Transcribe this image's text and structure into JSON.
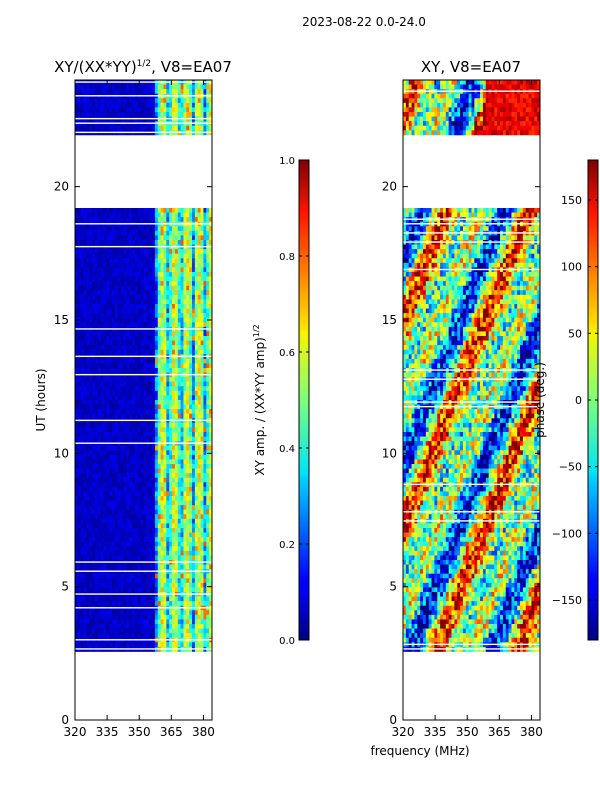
{
  "suptitle": "2023-08-22 0.0-24.0",
  "chart_data": [
    {
      "type": "heatmap",
      "title": "XY/(XX*YY)^{1/2}, V8=EA07",
      "title_main": "XY/(XX*YY)",
      "title_sup": "1/2",
      "title_suffix": ", V8=EA07",
      "xlabel": "",
      "ylabel": "UT (hours)",
      "xlim": [
        320,
        384
      ],
      "ylim": [
        0,
        24
      ],
      "xticks": [
        "320",
        "335",
        "350",
        "365",
        "380"
      ],
      "xtick_values": [
        320,
        335,
        350,
        365,
        380
      ],
      "yticks": [
        "0",
        "5",
        "10",
        "15",
        "20"
      ],
      "ytick_values": [
        0,
        5,
        10,
        15,
        20
      ],
      "data_time_ranges": [
        [
          2.5,
          19.2
        ],
        [
          22.0,
          24.0
        ]
      ],
      "colorbar": {
        "label_main": "XY amp. / (XX*YY amp)",
        "label_sup": "1/2",
        "range": [
          0.0,
          1.0
        ],
        "ticks": [
          "0.0",
          "0.2",
          "0.4",
          "0.6",
          "0.8",
          "1.0"
        ],
        "tick_values": [
          0.0,
          0.2,
          0.4,
          0.6,
          0.8,
          1.0
        ],
        "colormap": "jet"
      }
    },
    {
      "type": "heatmap",
      "title": "XY, V8=EA07",
      "xlabel": "frequency (MHz)",
      "ylabel": "",
      "xlim": [
        320,
        384
      ],
      "ylim": [
        0,
        24
      ],
      "xticks": [
        "320",
        "335",
        "350",
        "365",
        "380"
      ],
      "xtick_values": [
        320,
        335,
        350,
        365,
        380
      ],
      "yticks": [
        "0",
        "5",
        "10",
        "15",
        "20"
      ],
      "ytick_values": [
        0,
        5,
        10,
        15,
        20
      ],
      "data_time_ranges": [
        [
          2.5,
          19.2
        ],
        [
          22.0,
          24.0
        ]
      ],
      "colorbar": {
        "label": "phase (deg.)",
        "range": [
          -180,
          180
        ],
        "ticks": [
          "−150",
          "−100",
          "−50",
          "0",
          "50",
          "100",
          "150"
        ],
        "tick_values": [
          -150,
          -100,
          -50,
          0,
          50,
          100,
          150
        ],
        "colormap": "jet"
      }
    }
  ]
}
